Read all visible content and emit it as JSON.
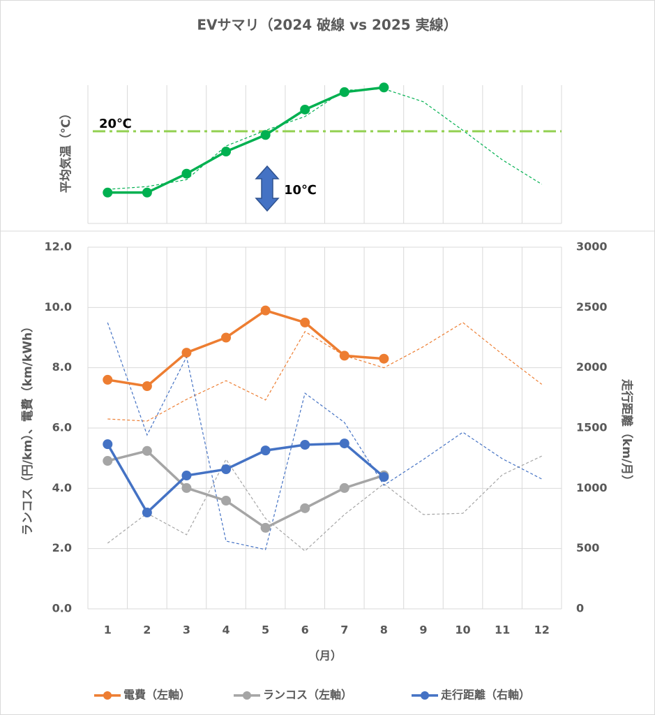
{
  "chart_data": [
    {
      "type": "line",
      "title": "EVサマリ（2024 破線 vs 2025 実線）",
      "ylabel": "平均気温（℃）",
      "ylim": [
        0,
        30
      ],
      "reference_line": {
        "value": 20,
        "label": "20℃",
        "color": "#92d050"
      },
      "annotation": "10℃",
      "series": [
        {
          "color": "#00b050",
          "values": [
            6.7,
            6.7,
            10.8,
            15.6,
            19.2,
            24.7,
            28.5,
            29.5,
            null,
            null,
            null,
            null
          ],
          "values_2024": [
            7.4,
            8.0,
            9.5,
            16.8,
            20.2,
            23.2,
            28.9,
            29.2,
            26.4,
            20.2,
            13.8,
            8.5
          ]
        }
      ]
    },
    {
      "type": "line",
      "categories": [
        "1",
        "2",
        "3",
        "4",
        "5",
        "6",
        "7",
        "8",
        "9",
        "10",
        "11",
        "12"
      ],
      "xlabel": "（月）",
      "ylabel": "ランコス（円/km）、電費（km/kWh）",
      "y2label": "走行距離（km/月）",
      "ylim": [
        0,
        12
      ],
      "yticks": [
        {
          "value": 0,
          "label": "0.0"
        },
        {
          "value": 2,
          "label": "2.0"
        },
        {
          "value": 4,
          "label": "4.0"
        },
        {
          "value": 6,
          "label": "6.0"
        },
        {
          "value": 8,
          "label": "8.0"
        },
        {
          "value": 10,
          "label": "10.0"
        },
        {
          "value": 12,
          "label": "12.0"
        }
      ],
      "y2lim": [
        0,
        3000
      ],
      "y2ticks": [
        0,
        500,
        1000,
        1500,
        2000,
        2500,
        3000
      ],
      "grid": true,
      "legend": "bottom",
      "series": [
        {
          "name": "電費（左軸）",
          "color": "#ed7d31",
          "axis": "y",
          "values": [
            7.6,
            7.39,
            8.5,
            9.0,
            9.9,
            9.5,
            8.4,
            8.3,
            null,
            null,
            null,
            null
          ],
          "values_2024": [
            6.3,
            6.23,
            6.95,
            7.57,
            6.93,
            9.2,
            8.4,
            8.0,
            8.7,
            9.5,
            8.45,
            7.45
          ]
        },
        {
          "name": "ランコス（左軸）",
          "color": "#a5a5a5",
          "axis": "y",
          "values": [
            4.91,
            5.24,
            4.01,
            3.59,
            2.69,
            3.34,
            4.01,
            4.43,
            null,
            null,
            null,
            null
          ],
          "values_2024": [
            2.18,
            3.17,
            2.46,
            4.96,
            3.0,
            1.92,
            3.13,
            4.15,
            3.13,
            3.17,
            4.45,
            5.07
          ]
        },
        {
          "name": "走行距離（右軸）",
          "color": "#4472c4",
          "axis": "y2",
          "values": [
            1366,
            799,
            1106,
            1158,
            1314,
            1361,
            1372,
            1094,
            null,
            null,
            null,
            null
          ],
          "values_2024": [
            2374,
            1442,
            2090,
            562,
            492,
            1789,
            1546,
            1025,
            1239,
            1465,
            1245,
            1077
          ]
        }
      ]
    }
  ]
}
